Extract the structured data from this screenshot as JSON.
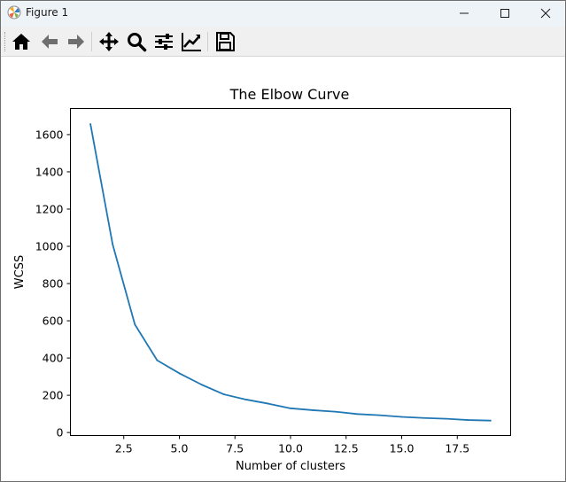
{
  "window": {
    "title": "Figure 1",
    "controls": [
      "minimize",
      "maximize",
      "close"
    ]
  },
  "toolbar": {
    "buttons": [
      {
        "name": "home",
        "icon": "home-icon"
      },
      {
        "name": "back",
        "icon": "arrow-left-icon"
      },
      {
        "name": "forward",
        "icon": "arrow-right-icon"
      },
      {
        "name": "pan",
        "icon": "move-icon"
      },
      {
        "name": "zoom",
        "icon": "search-icon"
      },
      {
        "name": "configure-subplots",
        "icon": "sliders-icon"
      },
      {
        "name": "edit-axis",
        "icon": "line-chart-icon"
      },
      {
        "name": "save",
        "icon": "floppy-disk-icon"
      }
    ]
  },
  "chart_data": {
    "type": "line",
    "title": "The Elbow Curve",
    "xlabel": "Number of clusters",
    "ylabel": "WCSS",
    "x": [
      1,
      2,
      3,
      4,
      5,
      6,
      7,
      8,
      9,
      10,
      11,
      12,
      13,
      14,
      15,
      16,
      17,
      18,
      19
    ],
    "series": [
      {
        "color": "#1f77b4",
        "values": [
          1657,
          1010,
          580,
          388,
          318,
          257,
          205,
          177,
          155,
          130,
          120,
          112,
          99,
          93,
          84,
          78,
          74,
          67,
          64
        ]
      }
    ],
    "xlim": [
      0.1,
      19.9
    ],
    "ylim": [
      -16,
      1740
    ],
    "xticks": [
      2.5,
      5.0,
      7.5,
      10.0,
      12.5,
      15.0,
      17.5
    ],
    "xtick_labels": [
      "2.5",
      "5.0",
      "7.5",
      "10.0",
      "12.5",
      "15.0",
      "17.5"
    ],
    "yticks": [
      0,
      200,
      400,
      600,
      800,
      1000,
      1200,
      1400,
      1600
    ],
    "ytick_labels": [
      "0",
      "200",
      "400",
      "600",
      "800",
      "1000",
      "1200",
      "1400",
      "1600"
    ],
    "grid": false,
    "legend": "none"
  }
}
